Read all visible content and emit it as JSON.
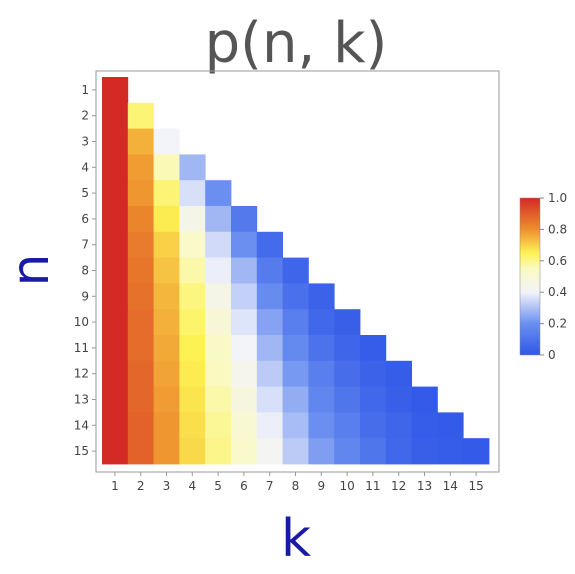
{
  "chart_data": {
    "type": "heatmap",
    "title": "p(n, k)",
    "xlabel": "k",
    "ylabel": "n",
    "x_ticks": [
      "1",
      "2",
      "3",
      "4",
      "5",
      "6",
      "7",
      "8",
      "9",
      "10",
      "11",
      "12",
      "13",
      "14",
      "15"
    ],
    "y_ticks": [
      "1",
      "2",
      "3",
      "4",
      "5",
      "6",
      "7",
      "8",
      "9",
      "10",
      "11",
      "12",
      "13",
      "14",
      "15"
    ],
    "color_range": [
      0,
      1
    ],
    "colorbar_ticks": [
      "0",
      "0.2",
      "0.4",
      "0.6",
      "0.8",
      "1.0"
    ],
    "colormap": [
      {
        "v": 0.0,
        "c": "#3057e8"
      },
      {
        "v": 0.2,
        "c": "#6a8ff0"
      },
      {
        "v": 0.4,
        "c": "#f3f3fa"
      },
      {
        "v": 0.55,
        "c": "#fafac0"
      },
      {
        "v": 0.65,
        "c": "#fdf254"
      },
      {
        "v": 0.8,
        "c": "#ee8f2d"
      },
      {
        "v": 1.0,
        "c": "#d32a26"
      }
    ],
    "values": [
      [
        1.0
      ],
      [
        1.0,
        0.62
      ],
      [
        1.0,
        0.75,
        0.4
      ],
      [
        1.0,
        0.78,
        0.56,
        0.28
      ],
      [
        1.0,
        0.79,
        0.62,
        0.36,
        0.2
      ],
      [
        1.0,
        0.82,
        0.66,
        0.45,
        0.28,
        0.12
      ],
      [
        1.0,
        0.84,
        0.7,
        0.52,
        0.35,
        0.2,
        0.07
      ],
      [
        1.0,
        0.85,
        0.72,
        0.57,
        0.39,
        0.28,
        0.13,
        0.05
      ],
      [
        1.0,
        0.86,
        0.74,
        0.61,
        0.45,
        0.33,
        0.19,
        0.09,
        0.04
      ],
      [
        1.0,
        0.87,
        0.75,
        0.63,
        0.49,
        0.37,
        0.24,
        0.14,
        0.06,
        0.03
      ],
      [
        1.0,
        0.87,
        0.76,
        0.65,
        0.53,
        0.4,
        0.28,
        0.18,
        0.1,
        0.05,
        0.02
      ],
      [
        1.0,
        0.88,
        0.77,
        0.66,
        0.55,
        0.44,
        0.32,
        0.22,
        0.14,
        0.08,
        0.04,
        0.02
      ],
      [
        1.0,
        0.88,
        0.78,
        0.67,
        0.57,
        0.47,
        0.36,
        0.26,
        0.17,
        0.11,
        0.06,
        0.03,
        0.01
      ],
      [
        1.0,
        0.89,
        0.79,
        0.68,
        0.59,
        0.5,
        0.39,
        0.29,
        0.2,
        0.14,
        0.08,
        0.05,
        0.02,
        0.01
      ],
      [
        1.0,
        0.89,
        0.79,
        0.69,
        0.6,
        0.52,
        0.42,
        0.32,
        0.23,
        0.17,
        0.11,
        0.06,
        0.03,
        0.02,
        0.01
      ]
    ]
  }
}
